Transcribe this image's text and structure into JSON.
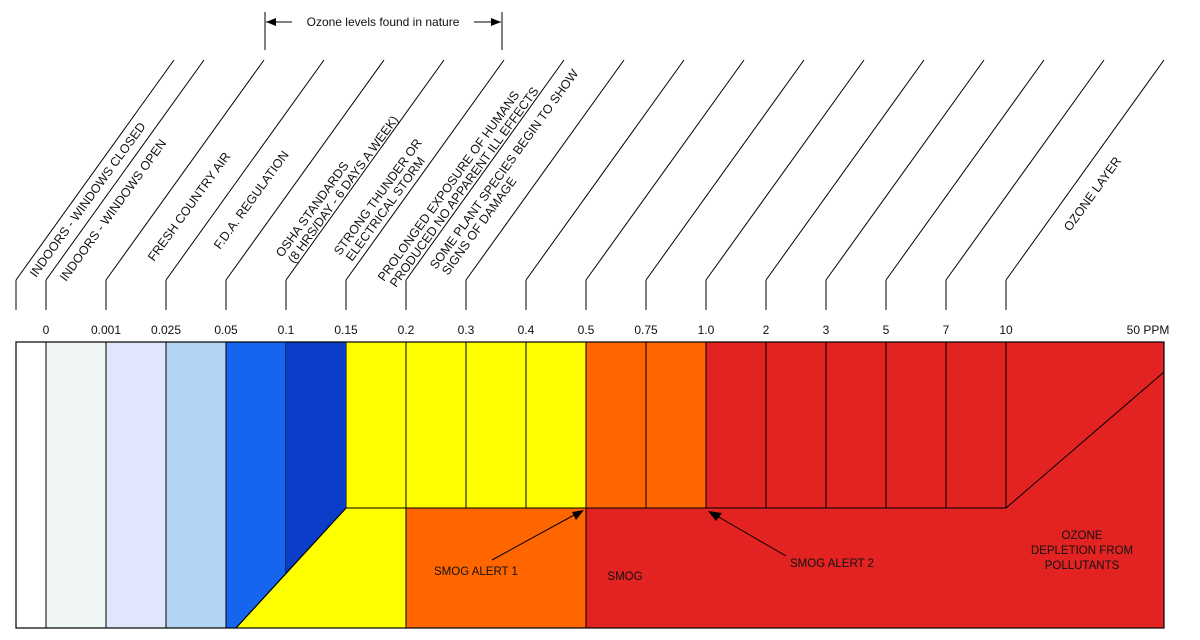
{
  "nature_range_label": "Ozone levels found in nature",
  "ticks": [
    "0",
    "0.001",
    "0.025",
    "0.05",
    "0.1",
    "0.15",
    "0.2",
    "0.3",
    "0.4",
    "0.5",
    "0.75",
    "1.0",
    "2",
    "3",
    "5",
    "7",
    "10",
    "50 PPM"
  ],
  "categories": [
    [
      "INDOORS - WINDOWS CLOSED"
    ],
    [
      "INDOORS - WINDOWS OPEN"
    ],
    [
      "FRESH COUNTRY AIR"
    ],
    [
      "F.D.A. REGULATION"
    ],
    [
      "OSHA STANDARDS",
      "(8 HRS/DAY - 6 DAYS A WEEK)"
    ],
    [
      "STRONG THUNDER OR",
      "ELECTRICAL STORM"
    ],
    [
      "PROLONGED EXPOSURE OF HUMANS",
      "PRODUCED NO APPARENT ILL EFFECTS"
    ],
    [
      "SOME PLANT SPECIES BEGIN TO SHOW",
      "SIGNS OF DAMAGE"
    ],
    [
      "OZONE LAYER"
    ]
  ],
  "column_colors": [
    "#ffffff",
    "#f0f6f5",
    "#e0e6fb",
    "#b3d4f5",
    "#1565ee",
    "#0a3dc8",
    "#ffff00",
    "#ffff00",
    "#ffff00",
    "#ffff00",
    "#ff6600",
    "#ff6600",
    "#e32222",
    "#e32222",
    "#e32222",
    "#e32222",
    "#e32222",
    "#e32222"
  ],
  "bands": {
    "smog_alert_1": "SMOG ALERT 1",
    "smog": "SMOG",
    "smog_alert_2": "SMOG ALERT 2",
    "ozone_depletion": [
      "OZONE",
      "DEPLETION FROM",
      "POLLUTANTS"
    ]
  },
  "colors": {
    "yellow": "#ffff00",
    "orange": "#ff6600",
    "red": "#e32222",
    "dark_blue": "#0a3dc8",
    "blue": "#1565ee"
  }
}
